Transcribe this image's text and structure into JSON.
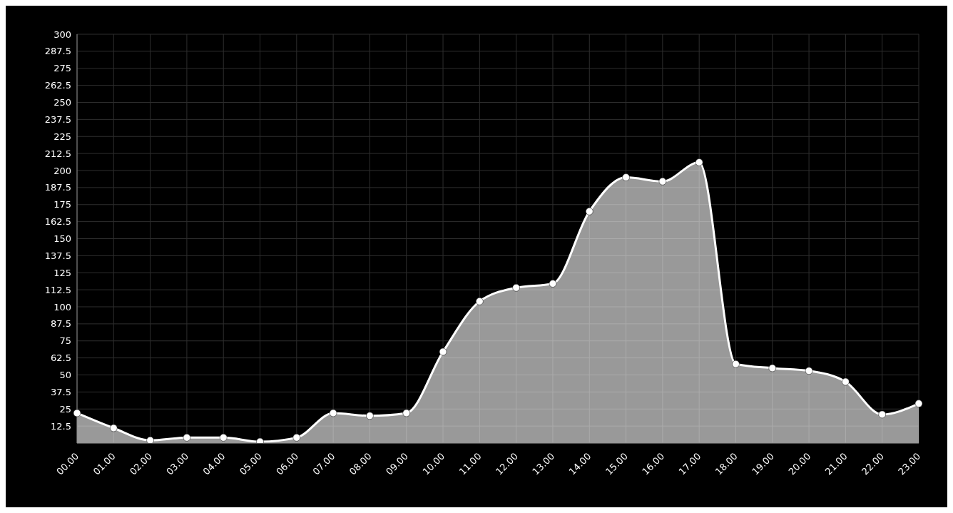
{
  "chart_data": {
    "type": "area",
    "categories": [
      "00.00",
      "01.00",
      "02.00",
      "03.00",
      "04.00",
      "05.00",
      "06.00",
      "07.00",
      "08.00",
      "09.00",
      "10.00",
      "11.00",
      "12.00",
      "13.00",
      "14.00",
      "15.00",
      "16.00",
      "17.00",
      "18.00",
      "19.00",
      "20.00",
      "21.00",
      "22.00",
      "23.00"
    ],
    "series": [
      {
        "color": "#ffffff",
        "values": [
          22,
          11,
          2,
          4,
          4,
          1,
          4,
          22,
          20,
          22,
          67,
          104,
          114,
          117,
          170,
          195,
          192,
          206,
          58,
          55,
          53,
          45,
          21,
          29
        ]
      }
    ],
    "ylim": [
      0,
      300
    ],
    "yticks": [
      {
        "value": 0,
        "label": null
      },
      12.5,
      25,
      37.5,
      50,
      62.5,
      75,
      87.5,
      100,
      112.5,
      125,
      137.5,
      150,
      162.5,
      175,
      187.5,
      200,
      212.5,
      225,
      237.5,
      250,
      262.5,
      275,
      287.5,
      300
    ],
    "grid": true,
    "marker": "circle",
    "line_style": "solid"
  }
}
